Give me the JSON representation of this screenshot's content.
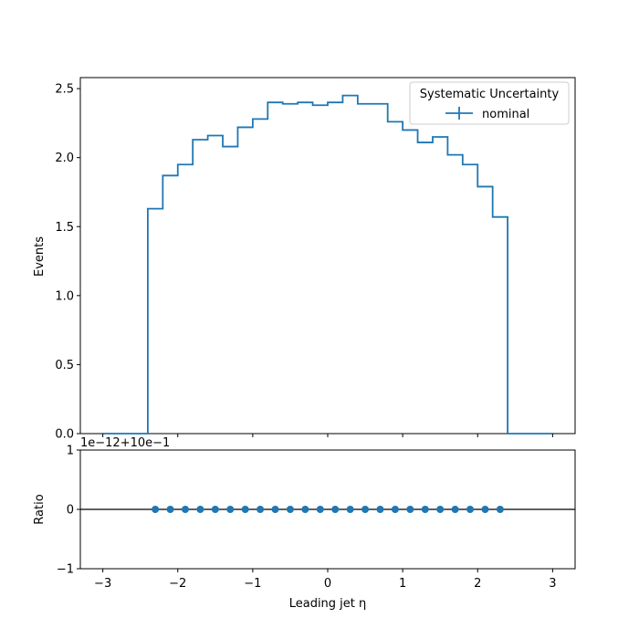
{
  "chart_data": [
    {
      "type": "histogram-step",
      "xlim": [
        -3.3,
        3.3
      ],
      "ylim": [
        0,
        2.58
      ],
      "ylabel": "Events",
      "yticks": [
        0.0,
        0.5,
        1.0,
        1.5,
        2.0,
        2.5
      ],
      "ytick_labels": [
        "0.0",
        "0.5",
        "1.0",
        "1.5",
        "2.0",
        "2.5"
      ],
      "legend": {
        "title": "Systematic Uncertainty",
        "placement": "top-right",
        "entries": [
          {
            "label": "nominal",
            "color": "#1f77b4"
          }
        ]
      },
      "bin_edges": [
        -3.0,
        -2.4,
        -2.2,
        -2.0,
        -1.8,
        -1.6,
        -1.4,
        -1.2,
        -1.0,
        -0.8,
        -0.6,
        -0.4,
        -0.2,
        0.0,
        0.2,
        0.4,
        0.6,
        0.8,
        1.0,
        1.2,
        1.4,
        1.6,
        1.8,
        2.0,
        2.2,
        2.4,
        3.0
      ],
      "counts": [
        0.0,
        1.63,
        1.87,
        1.95,
        2.13,
        2.16,
        2.08,
        2.22,
        2.28,
        2.4,
        2.39,
        2.4,
        2.38,
        2.4,
        2.45,
        2.39,
        2.39,
        2.26,
        2.2,
        2.11,
        2.15,
        2.02,
        1.95,
        1.79,
        1.57,
        0.0
      ],
      "series": [
        {
          "name": "nominal",
          "color": "#1f77b4"
        }
      ]
    },
    {
      "type": "scatter",
      "xlabel": "Leading jet  η",
      "ylabel": "Ratio",
      "xlim": [
        -3.3,
        3.3
      ],
      "ylim": [
        -1,
        1
      ],
      "xticks": [
        -3,
        -2,
        -1,
        0,
        1,
        2,
        3
      ],
      "xtick_labels": [
        "−3",
        "−2",
        "−1",
        "0",
        "1",
        "2",
        "3"
      ],
      "yticks": [
        -1,
        0,
        1
      ],
      "ytick_labels": [
        "−1",
        "0",
        "1"
      ],
      "offset_text": "1e−12+10e−1",
      "reference_line": 0,
      "x": [
        -2.3,
        -2.1,
        -1.9,
        -1.7,
        -1.5,
        -1.3,
        -1.1,
        -0.9,
        -0.7,
        -0.5,
        -0.3,
        -0.1,
        0.1,
        0.3,
        0.5,
        0.7,
        0.9,
        1.1,
        1.3,
        1.5,
        1.7,
        1.9,
        2.1,
        2.3
      ],
      "y": [
        0,
        0,
        0,
        0,
        0,
        0,
        0,
        0,
        0,
        0,
        0,
        0,
        0,
        0,
        0,
        0,
        0,
        0,
        0,
        0,
        0,
        0,
        0,
        0
      ],
      "color": "#1f77b4"
    }
  ]
}
